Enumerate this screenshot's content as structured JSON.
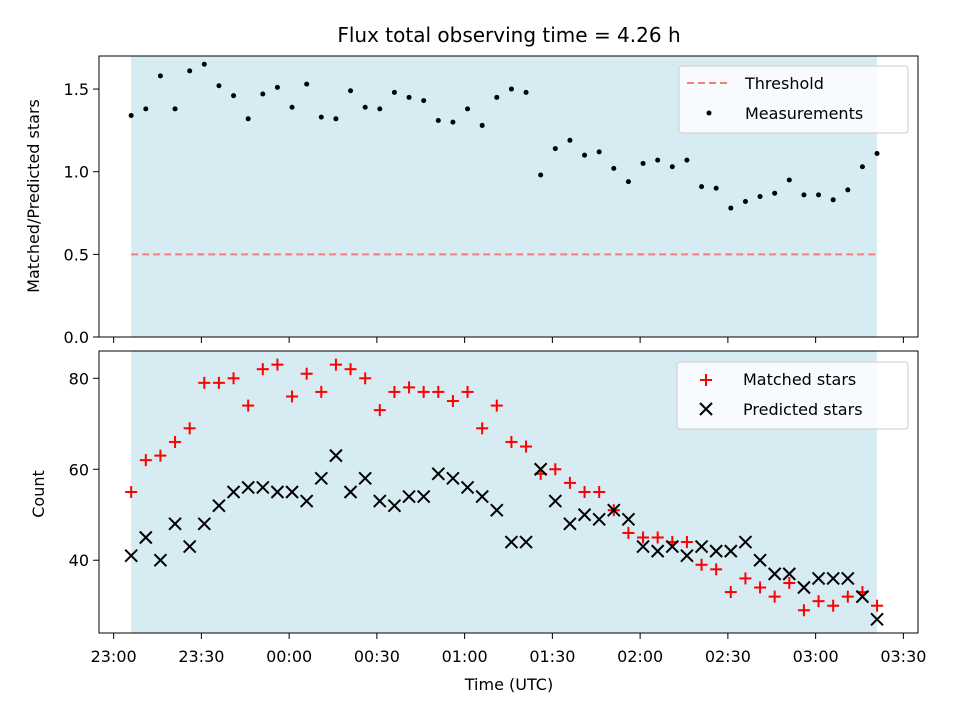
{
  "chart_data": [
    {
      "type": "scatter",
      "title": "Flux total observing time = 4.26 h",
      "xlabel": "",
      "ylabel": "Matched/Predicted stars",
      "ylim": [
        0,
        1.7
      ],
      "yticks": [
        "0.0",
        "0.5",
        "1.0",
        "1.5"
      ],
      "ytick_values": [
        0,
        0.5,
        1.0,
        1.5
      ],
      "xlim": [
        "22:55",
        "03:35"
      ],
      "shaded_interval": [
        "23:06",
        "03:21"
      ],
      "shade_color": "#add8e6",
      "legend_position": "top-right",
      "grid": false,
      "threshold": {
        "name": "Threshold",
        "value": 0.5,
        "color": "#f08080",
        "style": "dashed",
        "x_range": [
          "23:06",
          "03:21"
        ]
      },
      "series": [
        {
          "name": "Measurements",
          "marker": "dot",
          "color": "#000000",
          "x": [
            "23:06",
            "23:11",
            "23:16",
            "23:21",
            "23:26",
            "23:31",
            "23:36",
            "23:41",
            "23:46",
            "23:51",
            "23:56",
            "00:01",
            "00:06",
            "00:11",
            "00:16",
            "00:21",
            "00:26",
            "00:31",
            "00:36",
            "00:41",
            "00:46",
            "00:51",
            "00:56",
            "01:01",
            "01:06",
            "01:11",
            "01:16",
            "01:21",
            "01:26",
            "01:31",
            "01:36",
            "01:41",
            "01:46",
            "01:51",
            "01:56",
            "02:01",
            "02:06",
            "02:11",
            "02:16",
            "02:21",
            "02:26",
            "02:31",
            "02:36",
            "02:41",
            "02:46",
            "02:51",
            "02:56",
            "03:01",
            "03:06",
            "03:11",
            "03:16",
            "03:21"
          ],
          "y": [
            1.34,
            1.38,
            1.58,
            1.38,
            1.61,
            1.65,
            1.52,
            1.46,
            1.32,
            1.47,
            1.51,
            1.39,
            1.53,
            1.33,
            1.32,
            1.49,
            1.39,
            1.38,
            1.48,
            1.45,
            1.43,
            1.31,
            1.3,
            1.38,
            1.28,
            1.45,
            1.5,
            1.48,
            0.98,
            1.14,
            1.19,
            1.1,
            1.12,
            1.02,
            0.94,
            1.05,
            1.07,
            1.03,
            1.07,
            0.91,
            0.9,
            0.78,
            0.82,
            0.85,
            0.87,
            0.95,
            0.86,
            0.86,
            0.83,
            0.89,
            1.03,
            1.11
          ]
        }
      ]
    },
    {
      "type": "scatter",
      "title": "",
      "xlabel": "Time (UTC)",
      "ylabel": "Count",
      "ylim": [
        24,
        86
      ],
      "yticks": [
        "40",
        "60",
        "80"
      ],
      "ytick_values": [
        40,
        60,
        80
      ],
      "xlim": [
        "22:55",
        "03:35"
      ],
      "xticks": [
        "23:00",
        "23:30",
        "00:00",
        "00:30",
        "01:00",
        "01:30",
        "02:00",
        "02:30",
        "03:00",
        "03:30"
      ],
      "shaded_interval": [
        "23:06",
        "03:21"
      ],
      "shade_color": "#add8e6",
      "legend_position": "top-right",
      "grid": false,
      "x": [
        "23:06",
        "23:11",
        "23:16",
        "23:21",
        "23:26",
        "23:31",
        "23:36",
        "23:41",
        "23:46",
        "23:51",
        "23:56",
        "00:01",
        "00:06",
        "00:11",
        "00:16",
        "00:21",
        "00:26",
        "00:31",
        "00:36",
        "00:41",
        "00:46",
        "00:51",
        "00:56",
        "01:01",
        "01:06",
        "01:11",
        "01:16",
        "01:21",
        "01:26",
        "01:31",
        "01:36",
        "01:41",
        "01:46",
        "01:51",
        "01:56",
        "02:01",
        "02:06",
        "02:11",
        "02:16",
        "02:21",
        "02:26",
        "02:31",
        "02:36",
        "02:41",
        "02:46",
        "02:51",
        "02:56",
        "03:01",
        "03:06",
        "03:11",
        "03:16",
        "03:21"
      ],
      "series": [
        {
          "name": "Matched stars",
          "marker": "plus",
          "color": "#ff0000",
          "values": [
            55,
            62,
            63,
            66,
            69,
            79,
            79,
            80,
            74,
            82,
            83,
            76,
            81,
            77,
            83,
            82,
            80,
            73,
            77,
            78,
            77,
            77,
            75,
            77,
            69,
            74,
            66,
            65,
            59,
            60,
            57,
            55,
            55,
            51,
            46,
            45,
            45,
            44,
            44,
            39,
            38,
            33,
            36,
            34,
            32,
            35,
            29,
            31,
            30,
            32,
            33,
            30
          ]
        },
        {
          "name": "Predicted stars",
          "marker": "x",
          "color": "#000000",
          "values": [
            41,
            45,
            40,
            48,
            43,
            48,
            52,
            55,
            56,
            56,
            55,
            55,
            53,
            58,
            63,
            55,
            58,
            53,
            52,
            54,
            54,
            59,
            58,
            56,
            54,
            51,
            44,
            44,
            60,
            53,
            48,
            50,
            49,
            51,
            49,
            43,
            42,
            43,
            41,
            43,
            42,
            42,
            44,
            40,
            37,
            37,
            34,
            36,
            36,
            36,
            32,
            27
          ]
        }
      ]
    }
  ]
}
